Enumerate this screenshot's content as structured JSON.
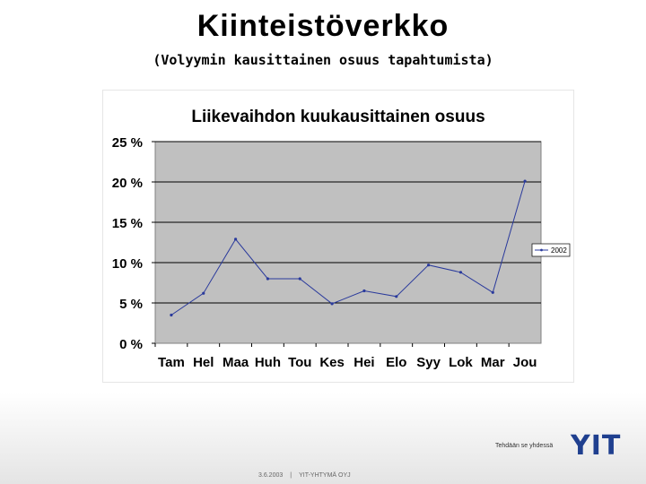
{
  "slide": {
    "title": "Kiinteistöverkko",
    "subtitle": "(Volyymin kausittainen osuus tapahtumista)"
  },
  "chart_data": {
    "type": "line",
    "title": "Liikevaihdon kuukausittainen osuus",
    "categories": [
      "Tam",
      "Hel",
      "Maa",
      "Huh",
      "Tou",
      "Kes",
      "Hei",
      "Elo",
      "Syy",
      "Lok",
      "Mar",
      "Jou"
    ],
    "series": [
      {
        "name": "2002",
        "values": [
          3.5,
          6.2,
          12.9,
          8.0,
          8.0,
          4.9,
          6.5,
          5.8,
          9.7,
          8.8,
          6.3,
          20.1
        ]
      }
    ],
    "y_ticks": [
      "0 %",
      "5 %",
      "10 %",
      "15 %",
      "20 %",
      "25 %"
    ],
    "ylim": [
      0,
      25
    ],
    "xlabel": "",
    "ylabel": "",
    "grid": true,
    "legend": "right",
    "colors": {
      "plot_background": "#c0c0c0",
      "line": "#2a3a9c",
      "gridline": "#000000"
    }
  },
  "footer": {
    "tagline": "Tehdään se yhdessä",
    "logo": "YIT",
    "date": "3.6.2003",
    "separator": "|",
    "company": "YIT-YHTYMÄ OYJ"
  }
}
